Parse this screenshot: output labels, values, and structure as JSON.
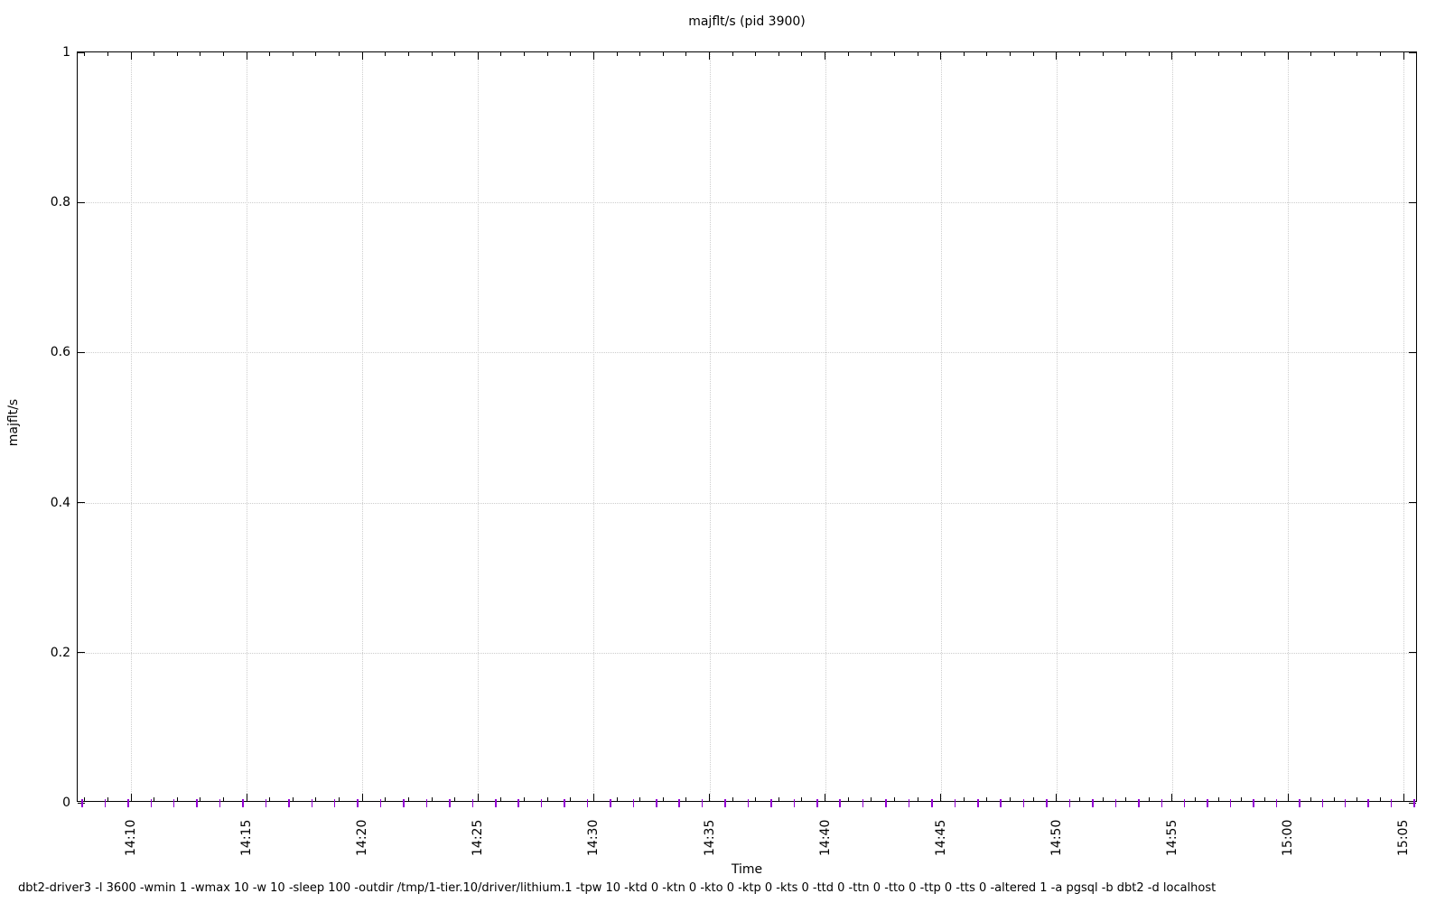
{
  "chart_data": {
    "type": "scatter",
    "title": "majflt/s (pid 3900)",
    "xlabel": "Time",
    "ylabel": "majflt/s",
    "ylim": [
      0,
      1
    ],
    "y_tick_values": [
      0,
      0.2,
      0.4,
      0.6,
      0.8,
      1
    ],
    "y_tick_labels": [
      "0",
      "0.2",
      "0.4",
      "0.6",
      "0.8",
      "1"
    ],
    "x_tick_labels": [
      "14:10",
      "14:15",
      "14:20",
      "14:25",
      "14:30",
      "14:35",
      "14:40",
      "14:45",
      "14:50",
      "14:55",
      "15:00",
      "15:05"
    ],
    "x_tick_interval": "5 minutes",
    "x_minor_tick_interval": "1 minute",
    "x_range": [
      "14:07:42",
      "15:05:37"
    ],
    "grid": true,
    "legend_position": "none",
    "series": [
      {
        "name": "majflt/s",
        "marker": "plus",
        "color": "#9400d3",
        "sample_start": "14:07:54",
        "sample_interval_seconds": 60,
        "sample_count": 59,
        "constant_value": 0
      }
    ]
  },
  "footer": {
    "command": "dbt2-driver3 -l 3600 -wmin 1 -wmax 10 -w 10 -sleep 100 -outdir /tmp/1-tier.10/driver/lithium.1 -tpw 10 -ktd 0 -ktn 0 -kto 0 -ktp 0 -kts 0 -ttd 0 -ttn 0 -tto 0 -ttp 0 -tts 0 -altered 1 -a pgsql -b dbt2 -d localhost"
  },
  "colors": {
    "background": "#ffffff",
    "axis": "#000000",
    "grid": "#cdcdcd",
    "marker": "#9400d3",
    "text": "#000000"
  }
}
